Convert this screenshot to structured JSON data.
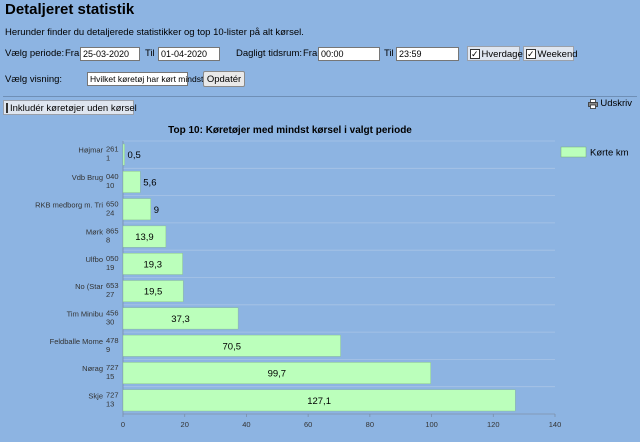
{
  "page": {
    "title": "Detaljeret statistik",
    "subtitle": "Herunder finder du detaljerede statistikker og top 10-lister på alt kørsel."
  },
  "filters": {
    "period_label": "Vælg periode:",
    "from_label": "Fra",
    "from_date": "25-03-2020",
    "to_label": "Til",
    "to_date": "01-04-2020",
    "daily_label": "Dagligt tidsrum:",
    "time_from_label": "Fra",
    "time_from": "00:00",
    "time_to_label": "Til",
    "time_to": "23:59",
    "weekdays_label": "Hverdage",
    "weekdays_checked": true,
    "weekend_label": "Weekend",
    "weekend_checked": true,
    "view_label": "Vælg visning:",
    "view_value": "Hvilket køretøj har kørt mindst?",
    "update_button": "Opdatér",
    "include_label": "Inkludér køretøjer uden kørsel",
    "include_checked": false,
    "print_label": "Udskriv",
    "print_icon": "printer-icon"
  },
  "chart_data": {
    "type": "bar",
    "orientation": "horizontal",
    "title": "Top 10: Køretøjer med mindst kørsel i valgt periode",
    "categories": [
      "Højmar",
      "Vdb Brug",
      "RKB medborg m. Tri",
      "Mørk",
      "Ulfbo",
      "No (Star",
      "Tim Minibu",
      "Feldballe Mome",
      "Nørag",
      "Skje"
    ],
    "category_codes": [
      [
        "261",
        "1"
      ],
      [
        "040",
        "10"
      ],
      [
        "650",
        "24"
      ],
      [
        "865",
        "8"
      ],
      [
        "050",
        "19"
      ],
      [
        "653",
        "27"
      ],
      [
        "456",
        "30"
      ],
      [
        "478",
        "9"
      ],
      [
        "727",
        "15"
      ],
      [
        "727",
        "13"
      ]
    ],
    "series": [
      {
        "name": "Kørte km",
        "values": [
          0.5,
          5.6,
          9,
          13.9,
          19.3,
          19.5,
          37.3,
          70.5,
          99.7,
          127.1
        ],
        "color": "#bbffbb"
      }
    ],
    "value_labels": [
      "0,5",
      "5,6",
      "9",
      "13,9",
      "19,3",
      "19,5",
      "37,3",
      "70,5",
      "99,7",
      "127,1"
    ],
    "xticks": [
      "0",
      "20",
      "40",
      "60",
      "80",
      "100",
      "120",
      "140"
    ],
    "xlim": [
      0,
      140
    ],
    "grid": true,
    "legend": "top-right"
  }
}
